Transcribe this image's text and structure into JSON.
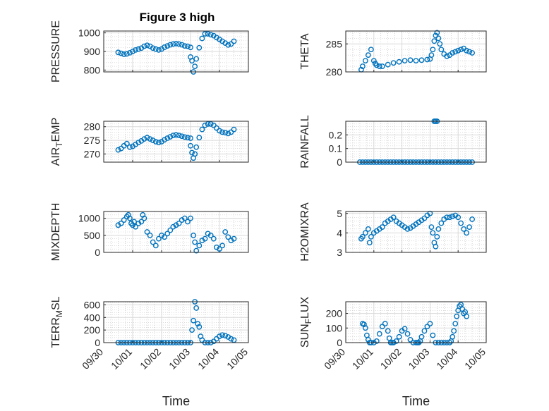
{
  "figure": {
    "title": "Figure 3 high",
    "marker_color": "#0072BD"
  },
  "chart_data": [
    {
      "type": "scatter",
      "title": "Figure 3 high",
      "ylabel_main": "PRESSURE",
      "ylabel_sub": "",
      "ylabel_tail": "",
      "ylim": [
        790,
        1010
      ],
      "yticks": [
        800,
        900,
        1000
      ],
      "ytick_labels": [
        "800",
        "900",
        "1000"
      ],
      "grid": true,
      "segments": [
        {
          "x": [
            0.5,
            0.6,
            0.7,
            0.8,
            0.9,
            1.0,
            1.1,
            1.2,
            1.3,
            1.4,
            1.5,
            1.6,
            1.7,
            1.8,
            1.9,
            2.0,
            2.1,
            2.2,
            2.3,
            2.4,
            2.5,
            2.6,
            2.7,
            2.8,
            2.9,
            3.0
          ],
          "y": [
            895,
            890,
            885,
            887,
            893,
            900,
            908,
            913,
            918,
            928,
            933,
            928,
            918,
            913,
            908,
            913,
            923,
            930,
            936,
            940,
            942,
            940,
            936,
            930,
            928,
            922
          ]
        },
        {
          "x": [
            3.0,
            3.05,
            3.1,
            3.15,
            3.2,
            3.3,
            3.4,
            3.5,
            3.6,
            3.7,
            3.8,
            3.9,
            4.0,
            4.1,
            4.2,
            4.3,
            4.4,
            4.5
          ],
          "y": [
            870,
            850,
            790,
            820,
            860,
            920,
            970,
            995,
            995,
            990,
            985,
            975,
            965,
            955,
            945,
            935,
            940,
            955
          ]
        }
      ]
    },
    {
      "type": "scatter",
      "ylabel_main": "THETA",
      "ylabel_sub": "",
      "ylabel_tail": "",
      "ylim": [
        280,
        287.3
      ],
      "yticks": [
        280,
        285
      ],
      "ytick_labels": [
        "280",
        "285"
      ],
      "grid": true,
      "segments": [
        {
          "x": [
            0.55,
            0.6,
            0.7,
            0.8,
            0.9,
            1.0,
            1.05,
            1.1,
            1.2,
            1.3,
            1.5,
            1.7,
            1.9,
            2.1,
            2.3,
            2.5,
            2.7,
            2.9,
            3.0
          ],
          "y": [
            280.4,
            281,
            282,
            283,
            284,
            282,
            281.5,
            281.2,
            281,
            281,
            281.3,
            281.6,
            281.8,
            282,
            282.1,
            282,
            282.1,
            282.2,
            282.3
          ]
        },
        {
          "x": [
            3.05,
            3.1,
            3.15,
            3.2,
            3.25,
            3.3,
            3.35,
            3.4,
            3.5,
            3.6,
            3.7,
            3.8,
            3.9,
            4.0,
            4.1,
            4.2,
            4.3,
            4.4,
            4.5
          ],
          "y": [
            283,
            284,
            285.5,
            286.5,
            287,
            286,
            285,
            284,
            283.2,
            282.8,
            283,
            283.4,
            283.6,
            283.8,
            284,
            284.2,
            283.8,
            283.6,
            283.4
          ]
        }
      ]
    },
    {
      "type": "scatter",
      "ylabel_main": "AIR",
      "ylabel_sub": "T",
      "ylabel_tail": "EMP",
      "ylim": [
        267,
        282
      ],
      "yticks": [
        270,
        275,
        280
      ],
      "ytick_labels": [
        "270",
        "275",
        "280"
      ],
      "grid": true,
      "segments": [
        {
          "x": [
            0.5,
            0.6,
            0.7,
            0.8,
            0.9,
            1.0,
            1.1,
            1.2,
            1.3,
            1.4,
            1.5,
            1.6,
            1.7,
            1.8,
            1.9,
            2.0,
            2.1,
            2.2,
            2.3,
            2.4,
            2.5,
            2.6,
            2.7,
            2.8,
            2.9,
            3.0
          ],
          "y": [
            271.5,
            272,
            273,
            273.8,
            272.5,
            272.8,
            273.5,
            274.2,
            274.8,
            275.5,
            276,
            275.5,
            275,
            274.5,
            274.2,
            274.5,
            275.2,
            275.8,
            276.3,
            276.8,
            277,
            276.8,
            276.5,
            276.2,
            276,
            275.8
          ]
        },
        {
          "x": [
            3.0,
            3.05,
            3.1,
            3.15,
            3.2,
            3.3,
            3.4,
            3.5,
            3.6,
            3.7,
            3.8,
            3.9,
            4.0,
            4.1,
            4.2,
            4.3,
            4.4,
            4.5
          ],
          "y": [
            273,
            270.5,
            268.5,
            270,
            272.5,
            276,
            279,
            280.5,
            281,
            281,
            280.5,
            279.5,
            278.5,
            278,
            277.8,
            277.5,
            278,
            279
          ]
        }
      ]
    },
    {
      "type": "scatter",
      "ylabel_main": "RAINFALL",
      "ylabel_sub": "",
      "ylabel_tail": "",
      "ylim": [
        0,
        0.3
      ],
      "yticks": [
        0,
        0.1,
        0.2
      ],
      "ytick_labels": [
        "0",
        "0.1",
        "0.2"
      ],
      "grid": true,
      "segments": [
        {
          "x": [
            0.5,
            0.6,
            0.7,
            0.8,
            0.9,
            1.0,
            1.1,
            1.2,
            1.3,
            1.4,
            1.5,
            1.6,
            1.7,
            1.8,
            1.9,
            2.0,
            2.1,
            2.2,
            2.3,
            2.4,
            2.5,
            2.6,
            2.7,
            2.8,
            2.9,
            3.0,
            3.1,
            3.2,
            3.3,
            3.4,
            3.5,
            3.6,
            3.7,
            3.8,
            3.9,
            4.0,
            4.1,
            4.2,
            4.3,
            4.4,
            4.5
          ],
          "y": [
            0,
            0,
            0,
            0,
            0,
            0,
            0,
            0,
            0,
            0,
            0,
            0,
            0,
            0,
            0,
            0,
            0,
            0,
            0,
            0,
            0,
            0,
            0,
            0,
            0,
            0,
            0,
            0,
            0,
            0,
            0,
            0,
            0,
            0,
            0,
            0,
            0,
            0,
            0,
            0,
            0
          ]
        },
        {
          "x": [
            3.15,
            3.2,
            3.25
          ],
          "y": [
            0.3,
            0.3,
            0.3
          ]
        }
      ]
    },
    {
      "type": "scatter",
      "ylabel_main": "MIXDEPTH",
      "ylabel_sub": "",
      "ylabel_tail": "",
      "ylim": [
        0,
        1200
      ],
      "yticks": [
        0,
        500,
        1000
      ],
      "ytick_labels": [
        "0",
        "500",
        "1000"
      ],
      "grid": true,
      "segments": [
        {
          "x": [
            0.5,
            0.6,
            0.7,
            0.8,
            0.85,
            0.9,
            0.95,
            1.0,
            1.05,
            1.1,
            1.2,
            1.3,
            1.35,
            1.4,
            1.5,
            1.6,
            1.7,
            1.8,
            1.9,
            2.0,
            2.1,
            2.2,
            2.3,
            2.4,
            2.5,
            2.6,
            2.7,
            2.8,
            2.9,
            3.0
          ],
          "y": [
            800,
            850,
            950,
            1050,
            1100,
            1000,
            850,
            800,
            900,
            750,
            850,
            900,
            1100,
            1000,
            600,
            500,
            300,
            200,
            400,
            500,
            450,
            550,
            650,
            750,
            800,
            850,
            950,
            1000,
            900,
            1000
          ]
        },
        {
          "x": [
            3.1,
            3.15,
            3.2,
            3.3,
            3.4,
            3.5,
            3.6,
            3.7,
            3.8,
            3.9,
            4.0,
            4.1,
            4.2,
            4.3,
            4.4,
            4.5
          ],
          "y": [
            500,
            300,
            50,
            200,
            350,
            400,
            550,
            500,
            400,
            150,
            100,
            200,
            600,
            450,
            350,
            400
          ]
        }
      ]
    },
    {
      "type": "scatter",
      "ylabel_main": "H2OMIXRA",
      "ylabel_sub": "",
      "ylabel_tail": "",
      "ylim": [
        3,
        5.1
      ],
      "yticks": [
        3,
        4,
        5
      ],
      "ytick_labels": [
        "3",
        "4",
        "5"
      ],
      "grid": true,
      "segments": [
        {
          "x": [
            0.55,
            0.6,
            0.7,
            0.8,
            0.85,
            0.9,
            1.0,
            1.1,
            1.2,
            1.3,
            1.4,
            1.5,
            1.6,
            1.7,
            1.8,
            1.9,
            2.0,
            2.1,
            2.2,
            2.3,
            2.4,
            2.5,
            2.6,
            2.7,
            2.8,
            2.9,
            3.0
          ],
          "y": [
            3.7,
            3.8,
            4.0,
            4.2,
            3.5,
            3.8,
            4.0,
            4.1,
            4.2,
            4.3,
            4.5,
            4.6,
            4.7,
            4.8,
            4.6,
            4.5,
            4.4,
            4.3,
            4.2,
            4.25,
            4.35,
            4.45,
            4.55,
            4.65,
            4.75,
            4.9,
            5.0
          ]
        },
        {
          "x": [
            3.05,
            3.1,
            3.15,
            3.2,
            3.25,
            3.3,
            3.4,
            3.5,
            3.6,
            3.7,
            3.8,
            3.9,
            4.0,
            4.1,
            4.2,
            4.3,
            4.4,
            4.5
          ],
          "y": [
            4.3,
            4.0,
            3.5,
            3.3,
            3.8,
            4.2,
            4.5,
            4.7,
            4.8,
            4.8,
            4.85,
            4.9,
            4.8,
            4.5,
            4.2,
            4.0,
            4.3,
            4.7
          ]
        }
      ]
    },
    {
      "type": "scatter",
      "ylabel_main": "TERR",
      "ylabel_sub": "M",
      "ylabel_tail": "SL",
      "ylim": [
        0,
        650
      ],
      "yticks": [
        0,
        200,
        400,
        600
      ],
      "ytick_labels": [
        "0",
        "200",
        "400",
        "600"
      ],
      "grid": true,
      "xticks": [
        0,
        1,
        2,
        3,
        4,
        5
      ],
      "xtick_labels": [
        "09/30",
        "10/01",
        "10/02",
        "10/03",
        "10/04",
        "10/05"
      ],
      "xlabel": "Time",
      "segments": [
        {
          "x": [
            0.5,
            0.6,
            0.7,
            0.8,
            0.9,
            1.0,
            1.1,
            1.2,
            1.3,
            1.4,
            1.5,
            1.6,
            1.7,
            1.8,
            1.9,
            2.0,
            2.1,
            2.2,
            2.3,
            2.4,
            2.5,
            2.6,
            2.7,
            2.8,
            2.9,
            3.0
          ],
          "y": [
            0,
            0,
            0,
            0,
            0,
            0,
            0,
            0,
            0,
            0,
            0,
            0,
            0,
            0,
            0,
            0,
            0,
            0,
            0,
            0,
            0,
            0,
            0,
            0,
            0,
            0
          ]
        },
        {
          "x": [
            3.05,
            3.1,
            3.15,
            3.2,
            3.25,
            3.3,
            3.35,
            3.4,
            3.5,
            3.6,
            3.7,
            3.8,
            3.9,
            4.0,
            4.1,
            4.2,
            4.3,
            4.4,
            4.5
          ],
          "y": [
            200,
            350,
            650,
            550,
            300,
            250,
            100,
            40,
            0,
            0,
            0,
            20,
            60,
            100,
            120,
            110,
            90,
            60,
            40
          ]
        }
      ]
    },
    {
      "type": "scatter",
      "ylabel_main": "SUN",
      "ylabel_sub": "F",
      "ylabel_tail": "LUX",
      "ylim": [
        0,
        280
      ],
      "yticks": [
        0,
        100,
        200
      ],
      "ytick_labels": [
        "0",
        "100",
        "200"
      ],
      "grid": true,
      "xticks": [
        0,
        1,
        2,
        3,
        4,
        5
      ],
      "xtick_labels": [
        "09/30",
        "10/01",
        "10/02",
        "10/03",
        "10/04",
        "10/05"
      ],
      "xlabel": "Time",
      "segments": [
        {
          "x": [
            0.6,
            0.65,
            0.7,
            0.75,
            0.8,
            0.85,
            0.9,
            1.0,
            1.1,
            1.2,
            1.3,
            1.4,
            1.5,
            1.55,
            1.6,
            1.65,
            1.7,
            1.8,
            1.9,
            2.0,
            2.1,
            2.2,
            2.3,
            2.4,
            2.5,
            2.55,
            2.6,
            2.65,
            2.7,
            2.8,
            2.9,
            3.0,
            3.1,
            3.2,
            3.3,
            3.4,
            3.5,
            3.6
          ],
          "y": [
            130,
            125,
            100,
            50,
            20,
            0,
            0,
            0,
            10,
            60,
            110,
            130,
            80,
            30,
            0,
            0,
            0,
            10,
            40,
            80,
            95,
            60,
            20,
            0,
            0,
            0,
            0,
            10,
            40,
            80,
            110,
            130,
            50,
            0,
            0,
            0,
            0,
            0
          ]
        },
        {
          "x": [
            3.7,
            3.75,
            3.8,
            3.85,
            3.9,
            3.95,
            4.0,
            4.05,
            4.1,
            4.15,
            4.2,
            4.25,
            4.3
          ],
          "y": [
            0,
            10,
            40,
            80,
            130,
            180,
            220,
            250,
            260,
            230,
            200,
            210,
            180
          ]
        }
      ]
    }
  ]
}
